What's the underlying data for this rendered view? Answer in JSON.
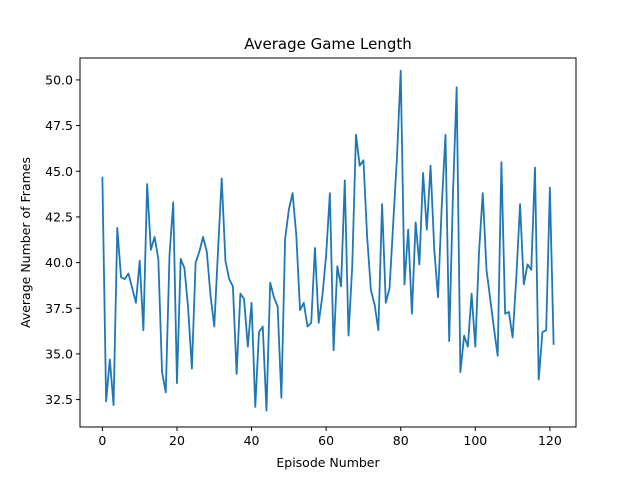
{
  "chart_data": {
    "type": "line",
    "title": "Average Game Length",
    "xlabel": "Episode Number",
    "ylabel": "Average Number of Frames",
    "xlim": [
      -6,
      127
    ],
    "ylim": [
      31.0,
      51.2
    ],
    "xticks": [
      0,
      20,
      40,
      60,
      80,
      100,
      120
    ],
    "xtick_labels": [
      "0",
      "20",
      "40",
      "60",
      "80",
      "100",
      "120"
    ],
    "yticks": [
      32.5,
      35.0,
      37.5,
      40.0,
      42.5,
      45.0,
      47.5,
      50.0
    ],
    "ytick_labels": [
      "32.5",
      "35.0",
      "37.5",
      "40.0",
      "42.5",
      "45.0",
      "47.5",
      "50.0"
    ],
    "grid": false,
    "series": [
      {
        "color": "#1f77b4",
        "x_start": 0,
        "values": [
          44.7,
          32.4,
          34.7,
          32.2,
          41.9,
          39.2,
          39.1,
          39.4,
          38.6,
          37.8,
          40.1,
          36.3,
          44.3,
          40.7,
          41.4,
          40.2,
          34.0,
          32.9,
          40.4,
          43.3,
          33.4,
          40.2,
          39.7,
          37.5,
          34.2,
          40.0,
          40.6,
          41.4,
          40.6,
          38.2,
          36.5,
          40.6,
          44.6,
          40.1,
          39.1,
          38.7,
          33.9,
          38.3,
          38.0,
          35.4,
          37.8,
          32.1,
          36.2,
          36.5,
          31.9,
          38.9,
          38.1,
          37.6,
          32.6,
          41.3,
          42.9,
          43.8,
          41.5,
          37.4,
          37.8,
          36.5,
          36.7,
          40.8,
          36.7,
          38.2,
          40.4,
          43.8,
          35.2,
          39.8,
          38.7,
          44.5,
          36.0,
          39.8,
          47.0,
          45.3,
          45.6,
          41.4,
          38.5,
          37.7,
          36.3,
          43.2,
          37.8,
          38.6,
          42.2,
          45.8,
          50.5,
          38.8,
          41.8,
          37.2,
          42.2,
          39.9,
          44.9,
          41.8,
          45.3,
          40.7,
          38.1,
          43.1,
          47.0,
          35.7,
          43.7,
          49.6,
          34.0,
          36.0,
          35.4,
          38.3,
          35.4,
          40.6,
          43.8,
          39.6,
          38.0,
          36.4,
          34.9,
          45.5,
          37.2,
          37.3,
          35.9,
          39.2,
          43.2,
          38.8,
          39.9,
          39.6,
          45.2,
          33.6,
          36.2,
          36.3,
          44.1,
          35.5
        ]
      }
    ]
  }
}
